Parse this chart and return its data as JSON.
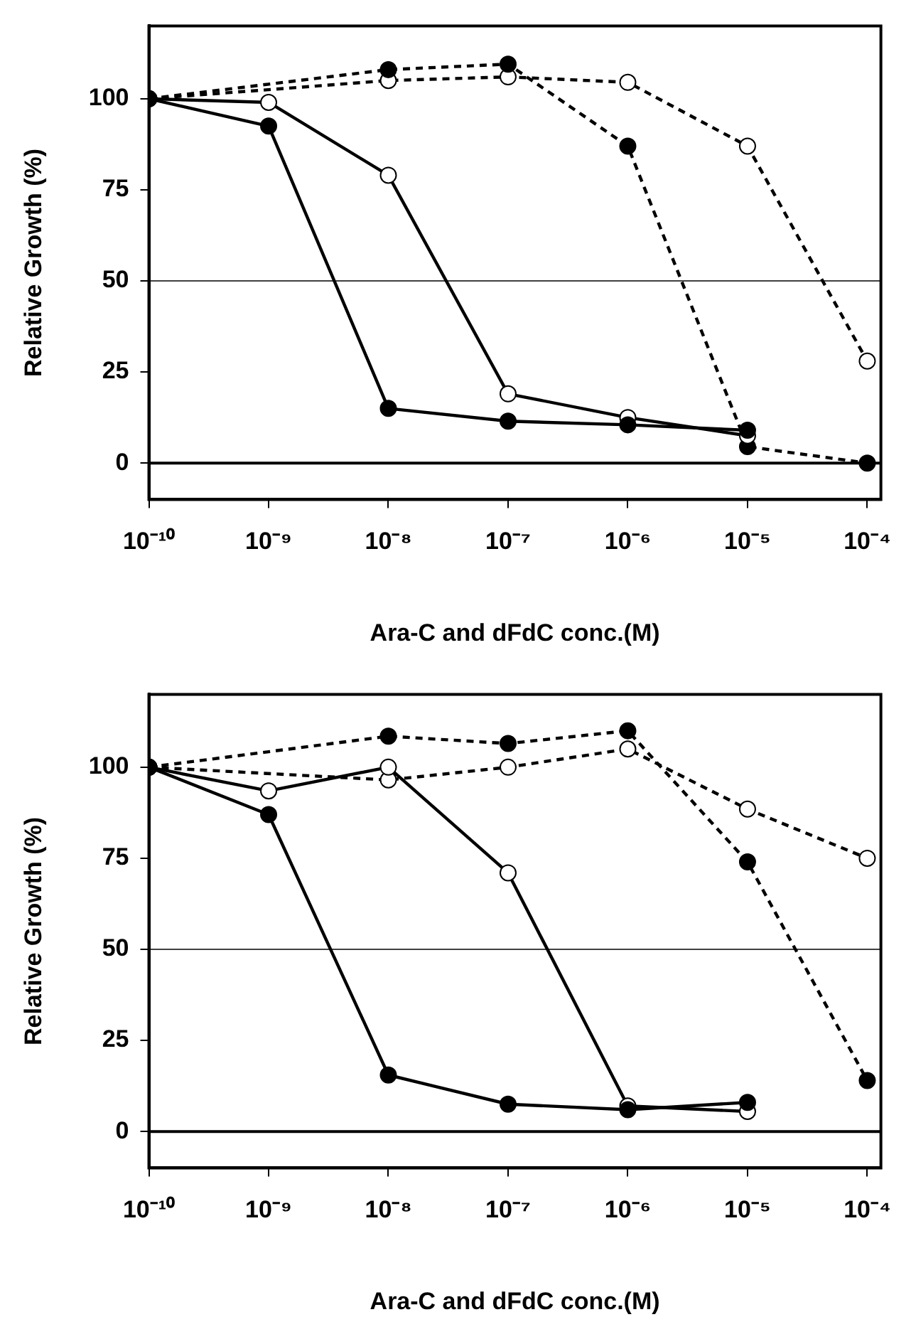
{
  "chart_data": [
    {
      "type": "line",
      "xlabel": "Ara-C and dFdC conc.(M)",
      "ylabel": "Relative Growth (%)",
      "log": "x",
      "grid": false,
      "legend": false,
      "xlim": [
        1e-10,
        0.00013
      ],
      "ylim": [
        -10,
        120
      ],
      "xticks": [
        {
          "value": 1e-10,
          "label": "10⁻¹⁰"
        },
        {
          "value": 1e-09,
          "label": "10⁻⁹"
        },
        {
          "value": 1e-08,
          "label": "10⁻⁸"
        },
        {
          "value": 1e-07,
          "label": "10⁻⁷"
        },
        {
          "value": 1e-06,
          "label": "10⁻⁶"
        },
        {
          "value": 1e-05,
          "label": "10⁻⁵"
        },
        {
          "value": 0.0001,
          "label": "10⁻⁴"
        }
      ],
      "yticks": [
        0,
        25,
        50,
        75,
        100
      ],
      "ref_lines": [
        {
          "axis": "y",
          "value": 0,
          "color": "#000000"
        },
        {
          "axis": "y",
          "value": 50,
          "color": "#000000"
        }
      ],
      "marker": "circle",
      "series": [
        {
          "color": "#000000",
          "colors": [
            "#000000",
            "#000000",
            "#000000",
            "#000000",
            "#000000",
            "#000000"
          ],
          "line_style": "solid",
          "x": [
            1e-10,
            1e-09,
            1e-08,
            1e-07,
            1e-06,
            1e-05
          ],
          "values": [
            100,
            92.5,
            15,
            11.5,
            10.5,
            9
          ]
        },
        {
          "color": "#000000",
          "colors": [
            "#ffffff",
            "#ffffff",
            "#ffffff",
            "#ffffff",
            "#ffffff",
            "#ffffff"
          ],
          "line_style": "solid",
          "x": [
            1e-10,
            1e-09,
            1e-08,
            1e-07,
            1e-06,
            1e-05
          ],
          "values": [
            100,
            99,
            79,
            19,
            12.5,
            7.5
          ]
        },
        {
          "color": "#000000",
          "colors": [
            "#000000",
            "#000000",
            "#000000",
            "#000000",
            "#000000",
            "#000000"
          ],
          "line_style": "dashed",
          "x": [
            1e-10,
            1e-08,
            1e-07,
            1e-06,
            1e-05,
            0.0001
          ],
          "values": [
            100,
            108,
            109.5,
            87,
            4.5,
            0
          ]
        },
        {
          "color": "#000000",
          "colors": [
            "#ffffff",
            "#ffffff",
            "#ffffff",
            "#ffffff",
            "#ffffff",
            "#ffffff"
          ],
          "line_style": "dashed",
          "x": [
            1e-10,
            1e-08,
            1e-07,
            1e-06,
            1e-05,
            0.0001
          ],
          "values": [
            100,
            105,
            106,
            104.5,
            87,
            28
          ]
        }
      ]
    },
    {
      "type": "line",
      "xlabel": "Ara-C and dFdC conc.(M)",
      "ylabel": "Relative Growth (%)",
      "log": "x",
      "grid": false,
      "legend": false,
      "xlim": [
        1e-10,
        0.00013
      ],
      "ylim": [
        -10,
        120
      ],
      "xticks": [
        {
          "value": 1e-10,
          "label": "10⁻¹⁰"
        },
        {
          "value": 1e-09,
          "label": "10⁻⁹"
        },
        {
          "value": 1e-08,
          "label": "10⁻⁸"
        },
        {
          "value": 1e-07,
          "label": "10⁻⁷"
        },
        {
          "value": 1e-06,
          "label": "10⁻⁶"
        },
        {
          "value": 1e-05,
          "label": "10⁻⁵"
        },
        {
          "value": 0.0001,
          "label": "10⁻⁴"
        }
      ],
      "yticks": [
        0,
        25,
        50,
        75,
        100
      ],
      "ref_lines": [
        {
          "axis": "y",
          "value": 0,
          "color": "#000000"
        },
        {
          "axis": "y",
          "value": 50,
          "color": "#000000"
        }
      ],
      "marker": "circle",
      "series": [
        {
          "color": "#000000",
          "colors": [
            "#000000",
            "#000000",
            "#000000",
            "#000000",
            "#000000",
            "#000000"
          ],
          "line_style": "solid",
          "x": [
            1e-10,
            1e-09,
            1e-08,
            1e-07,
            1e-06,
            1e-05
          ],
          "values": [
            100,
            87,
            15.5,
            7.5,
            6,
            8
          ]
        },
        {
          "color": "#000000",
          "colors": [
            "#ffffff",
            "#ffffff",
            "#ffffff",
            "#ffffff",
            "#ffffff",
            "#ffffff"
          ],
          "line_style": "solid",
          "x": [
            1e-10,
            1e-09,
            1e-08,
            1e-07,
            1e-06,
            1e-05
          ],
          "values": [
            100,
            93.5,
            100,
            71,
            7,
            5.5
          ]
        },
        {
          "color": "#000000",
          "colors": [
            "#000000",
            "#000000",
            "#000000",
            "#000000",
            "#000000",
            "#000000"
          ],
          "line_style": "dashed",
          "x": [
            1e-10,
            1e-08,
            1e-07,
            1e-06,
            1e-05,
            0.0001
          ],
          "values": [
            100,
            108.5,
            106.5,
            110,
            74,
            14
          ]
        },
        {
          "color": "#000000",
          "colors": [
            "#ffffff",
            "#ffffff",
            "#ffffff",
            "#ffffff",
            "#ffffff",
            "#ffffff"
          ],
          "line_style": "dashed",
          "x": [
            1e-10,
            1e-08,
            1e-07,
            1e-06,
            1e-05,
            0.0001
          ],
          "values": [
            100,
            96.5,
            100,
            105,
            88.5,
            75
          ]
        }
      ]
    }
  ]
}
